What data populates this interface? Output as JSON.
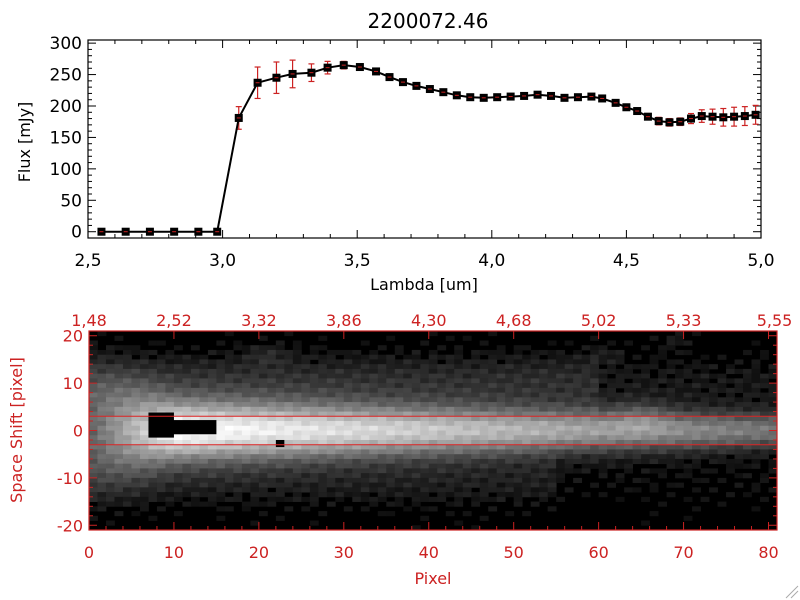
{
  "chart_data": [
    {
      "type": "line",
      "title": "2200072.46",
      "xlabel": "Lambda [um]",
      "ylabel": "Flux [mJy]",
      "xlim": [
        2.5,
        5.0
      ],
      "ylim": [
        -10,
        305
      ],
      "x_ticks": [
        "2.5",
        "3.0",
        "3.5",
        "4.0",
        "4.5",
        "5.0"
      ],
      "y_ticks": [
        "0",
        "50",
        "100",
        "150",
        "200",
        "250",
        "300"
      ],
      "line_color": "#000000",
      "marker_color": "#000000",
      "errorbar_color": "#cc2222",
      "series": [
        {
          "x": [
            2.55,
            2.64,
            2.73,
            2.82,
            2.91,
            2.98,
            3.06,
            3.13,
            3.2,
            3.26,
            3.33,
            3.39,
            3.45,
            3.51,
            3.57,
            3.62,
            3.67,
            3.72,
            3.77,
            3.82,
            3.87,
            3.92,
            3.97,
            4.02,
            4.07,
            4.12,
            4.17,
            4.22,
            4.27,
            4.32,
            4.37,
            4.41,
            4.46,
            4.5,
            4.54,
            4.58,
            4.62,
            4.66,
            4.7,
            4.74,
            4.78,
            4.82,
            4.86,
            4.9,
            4.94,
            4.98
          ],
          "y": [
            0,
            0,
            0,
            0,
            0,
            0,
            181,
            237,
            245,
            251,
            253,
            261,
            265,
            262,
            255,
            246,
            238,
            232,
            227,
            222,
            217,
            214,
            213,
            214,
            215,
            216,
            218,
            216,
            213,
            214,
            215,
            212,
            205,
            198,
            192,
            183,
            176,
            174,
            175,
            180,
            184,
            183,
            182,
            183,
            184,
            186
          ],
          "yerr": [
            0,
            0,
            0,
            0,
            0,
            0,
            18,
            25,
            25,
            22,
            14,
            10,
            6,
            4,
            3,
            3,
            3,
            3,
            3,
            3,
            3,
            3,
            3,
            3,
            3,
            3,
            3,
            3,
            3,
            3,
            3,
            3,
            3,
            3,
            4,
            5,
            6,
            6,
            6,
            8,
            10,
            12,
            14,
            15,
            15,
            15
          ]
        }
      ]
    },
    {
      "type": "heatmap",
      "xlabel": "Pixel",
      "ylabel": "Space Shift [pixel]",
      "xlim": [
        0,
        81
      ],
      "ylim": [
        -21,
        21
      ],
      "x_ticks": [
        "0",
        "10",
        "20",
        "30",
        "40",
        "50",
        "60",
        "70",
        "80"
      ],
      "y_ticks": [
        "-20",
        "-10",
        "0",
        "10",
        "20"
      ],
      "top_axis_ticks": [
        "1.48",
        "2.52",
        "3.32",
        "3.86",
        "4.30",
        "4.68",
        "5.02",
        "5.33",
        "5.55"
      ],
      "aperture_lines": [
        3,
        -3
      ],
      "axis_color": "#cc2222",
      "colormap": "grayscale"
    }
  ]
}
